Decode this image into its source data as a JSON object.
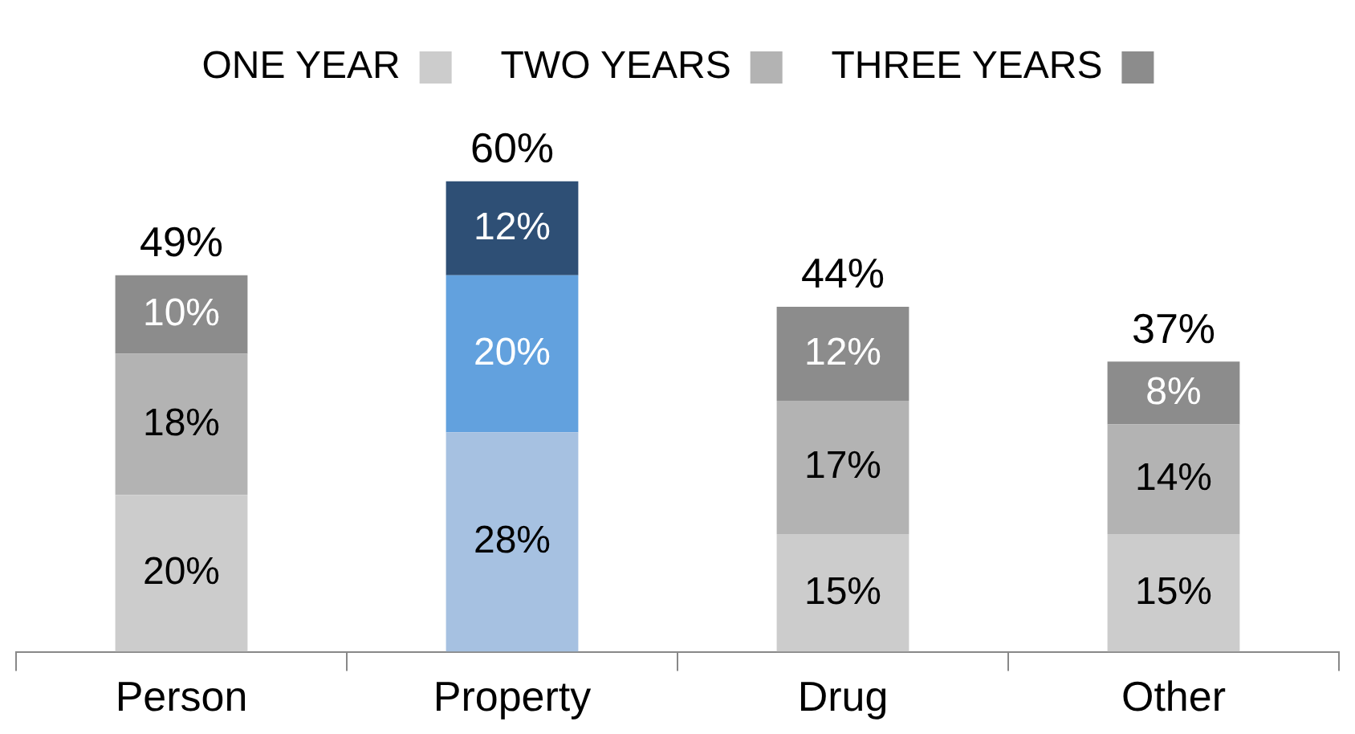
{
  "chart_data": {
    "type": "bar",
    "stacked": true,
    "legend": "top",
    "categories": [
      "Person",
      "Property",
      "Drug",
      "Other"
    ],
    "series": [
      {
        "name": "ONE YEAR",
        "color": "#cccccc",
        "colors": [
          "#cccccc",
          "#a6c1e1",
          "#cccccc",
          "#cccccc"
        ],
        "values": [
          20,
          28,
          15,
          15
        ],
        "value_labels": [
          "20%",
          "28%",
          "15%",
          "15%"
        ]
      },
      {
        "name": "TWO YEARS",
        "color": "#b3b3b3",
        "colors": [
          "#b3b3b3",
          "#62a1de",
          "#b3b3b3",
          "#b3b3b3"
        ],
        "values": [
          18,
          20,
          17,
          14
        ],
        "value_labels": [
          "18%",
          "20%",
          "17%",
          "14%"
        ]
      },
      {
        "name": "THREE YEARS",
        "color": "#8c8c8c",
        "colors": [
          "#8c8c8c",
          "#2e4f75",
          "#8c8c8c",
          "#8c8c8c"
        ],
        "values": [
          10,
          12,
          12,
          8
        ],
        "value_labels": [
          "10%",
          "12%",
          "12%",
          "8%"
        ]
      }
    ],
    "totals": [
      "49%",
      "60%",
      "44%",
      "37%"
    ]
  }
}
